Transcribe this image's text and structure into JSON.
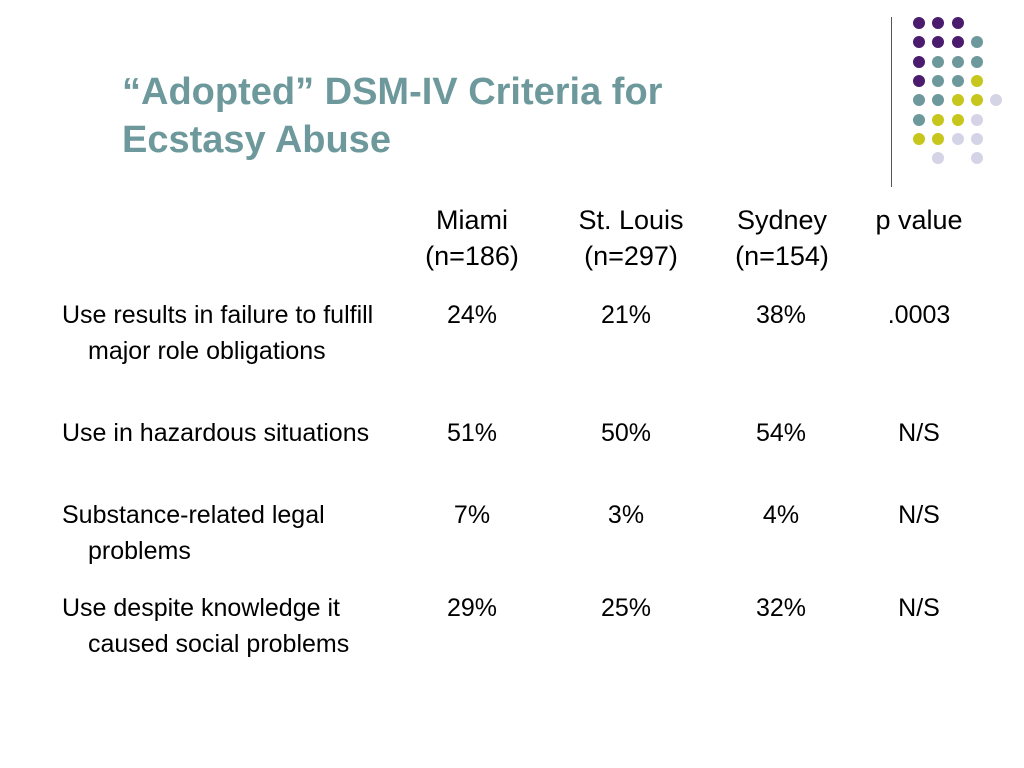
{
  "title": [
    "“Adopted” DSM-IV Criteria for",
    "Ecstasy Abuse"
  ],
  "colors": {
    "title": "#6e999c",
    "purple": "#4b1c6d",
    "teal": "#6e999c",
    "olive": "#c6c61c",
    "lavender": "#d4d4e6",
    "divider": "#555555"
  },
  "columns": [
    {
      "name": "Miami",
      "n": "(n=186)"
    },
    {
      "name": "St. Louis",
      "n": "(n=297)"
    },
    {
      "name": "Sydney",
      "n": "(n=154)"
    },
    {
      "name": "p value",
      "n": ""
    }
  ],
  "rows": [
    {
      "label": "Use results in failure to fulfill major role obligations",
      "values": [
        "24%",
        "21%",
        "38%",
        ".0003"
      ]
    },
    {
      "label": "Use in hazardous situations",
      "values": [
        "51%",
        "50%",
        "54%",
        "N/S"
      ]
    },
    {
      "label": "Substance-related legal problems",
      "values": [
        "7%",
        "3%",
        "4%",
        "N/S"
      ]
    },
    {
      "label": "Use despite knowledge it caused social problems",
      "values": [
        "29%",
        "25%",
        "32%",
        "N/S"
      ]
    }
  ]
}
